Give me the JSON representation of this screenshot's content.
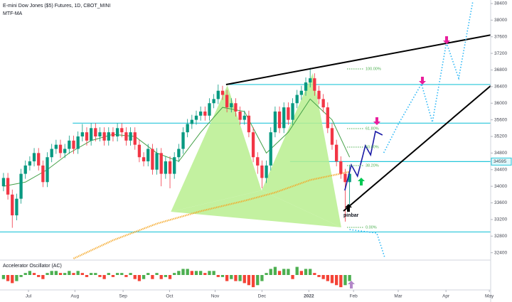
{
  "chart_data": {
    "type": "candlestick",
    "title": "E-mini Dow Jones ($5) Futures, 1D, CBOT_MINI",
    "subtitle": "MTF-MA",
    "xlim": [
      -0.8,
      111.2
    ],
    "ylim": [
      32240,
      38485
    ],
    "yticks": [
      32400,
      32800,
      33200,
      33600,
      34000,
      34400,
      34800,
      35200,
      35600,
      36000,
      36400,
      36800,
      37200,
      37600,
      38000,
      38400
    ],
    "xticks": [
      {
        "value": 5.7,
        "label": "Jul"
      },
      {
        "value": 16.3,
        "label": "Aug"
      },
      {
        "value": 27.3,
        "label": "Sep"
      },
      {
        "value": 37.9,
        "label": "Oct"
      },
      {
        "value": 48.3,
        "label": "Nov"
      },
      {
        "value": 59,
        "label": "Dec"
      },
      {
        "value": 69.7,
        "label": "2022"
      },
      {
        "value": 79.9,
        "label": "Feb"
      },
      {
        "value": 90.1,
        "label": "Mar"
      },
      {
        "value": 101,
        "label": "Apr"
      },
      {
        "value": 110.9,
        "label": "May"
      }
    ],
    "up_color": "#089981",
    "down_color": "#f23645",
    "open": [
      34000,
      34200,
      33800,
      33300,
      33700,
      34300,
      34500,
      34600,
      34800,
      34500,
      34100,
      34700,
      34900,
      35000,
      34800,
      34900,
      35100,
      34900,
      35200,
      35300,
      35100,
      35400,
      35200,
      35300,
      35100,
      35300,
      35200,
      35400,
      35300,
      35100,
      35300,
      35000,
      34700,
      34600,
      34900,
      34400,
      34800,
      34300,
      34600,
      34300,
      34700,
      34900,
      35300,
      35500,
      35600,
      35700,
      35800,
      35700,
      36000,
      36100,
      36300,
      36200,
      35900,
      36000,
      35800,
      35600,
      35700,
      35300,
      34700,
      34500,
      34200,
      34500,
      35300,
      35800,
      35400,
      35900,
      35600,
      36000,
      36200,
      36300,
      36500,
      36600,
      36300,
      36100,
      35900,
      35400,
      35000,
      34600,
      34300,
      34100
    ],
    "high": [
      34320,
      34320,
      33920,
      33820,
      34420,
      34620,
      34720,
      34920,
      34920,
      34620,
      34820,
      35020,
      35120,
      35120,
      35020,
      35220,
      35220,
      35320,
      35500,
      35420,
      35520,
      35520,
      35420,
      35420,
      35420,
      35420,
      35520,
      35520,
      35420,
      35420,
      35420,
      35120,
      34820,
      35020,
      35020,
      34920,
      34920,
      34720,
      34720,
      34820,
      35020,
      35420,
      35620,
      35720,
      35820,
      35920,
      35920,
      36120,
      36220,
      36450,
      36420,
      36320,
      36120,
      36120,
      35920,
      35820,
      35820,
      35420,
      34820,
      34620,
      34620,
      35420,
      35920,
      35920,
      36020,
      36020,
      36120,
      36320,
      36420,
      36620,
      36850,
      36720,
      36420,
      36220,
      36020,
      35520,
      35120,
      34720,
      34420,
      34520
    ],
    "low": [
      33880,
      33680,
      33000,
      33180,
      33580,
      34180,
      34380,
      34480,
      34380,
      33980,
      33980,
      34580,
      34780,
      34680,
      34680,
      34780,
      34780,
      34780,
      35080,
      34980,
      34980,
      35080,
      35080,
      34980,
      34980,
      35080,
      35080,
      35180,
      34980,
      34980,
      34880,
      34580,
      34480,
      34480,
      34280,
      34280,
      34000,
      34180,
      33950,
      34180,
      34580,
      34780,
      35180,
      35380,
      35480,
      35580,
      35580,
      35580,
      35880,
      35980,
      36080,
      35780,
      35780,
      35680,
      35480,
      35480,
      35180,
      34580,
      34300,
      33950,
      34080,
      34380,
      35180,
      35280,
      35280,
      35480,
      35480,
      35880,
      36080,
      36180,
      36380,
      36180,
      35980,
      35780,
      35280,
      34880,
      34480,
      34180,
      33150,
      33400
    ],
    "close": [
      34200,
      33800,
      33300,
      33700,
      34300,
      34500,
      34600,
      34800,
      34500,
      34100,
      34700,
      34900,
      35000,
      34800,
      34900,
      35100,
      34900,
      35200,
      35300,
      35100,
      35400,
      35200,
      35300,
      35100,
      35300,
      35200,
      35400,
      35300,
      35100,
      35300,
      35000,
      34700,
      34600,
      34900,
      34400,
      34800,
      34300,
      34600,
      34300,
      34700,
      34900,
      35300,
      35500,
      35600,
      35700,
      35800,
      35700,
      36000,
      36100,
      36300,
      36200,
      35900,
      36000,
      35800,
      35600,
      35700,
      35300,
      34700,
      34500,
      34200,
      34500,
      35300,
      35800,
      35400,
      35900,
      35600,
      36000,
      36200,
      36300,
      36500,
      36600,
      36300,
      36100,
      35900,
      35400,
      35000,
      34600,
      34300,
      34100,
      34300
    ],
    "last_price": 34595,
    "overlays": [
      {
        "color": "#43a047",
        "x": [
          0,
          5,
          10,
          15,
          20,
          25,
          30,
          35,
          40,
          45,
          50,
          55,
          60,
          65,
          70,
          75,
          79
        ],
        "values": [
          34000,
          34100,
          34400,
          34800,
          35100,
          35250,
          35200,
          34800,
          34600,
          35300,
          35900,
          35800,
          34800,
          35300,
          36100,
          35600,
          34700
        ]
      },
      {
        "color": "#f5a623",
        "dotted": true,
        "x": [
          16,
          25,
          35,
          45,
          55,
          62,
          70,
          79
        ],
        "values": [
          32260,
          32700,
          33100,
          33400,
          33650,
          33850,
          34150,
          34350
        ]
      }
    ],
    "levels": [
      {
        "value": 36450,
        "start": 50.8
      },
      {
        "value": 35520,
        "start": 15.8
      },
      {
        "value": 34595,
        "start": 65.4
      },
      {
        "value": 32900,
        "start": -0.8
      }
    ],
    "level_color": "#26c6da",
    "pattern": {
      "color": "#b9ef8f",
      "x": [
        38.2,
        51.1,
        58.9,
        70.6,
        77.1
      ],
      "values": [
        33386,
        36432,
        33900,
        36723,
        33010
      ]
    },
    "trendlines": [
      {
        "x": [
          50.8,
          112.3
        ],
        "values": [
          36449,
          37664
        ]
      },
      {
        "x": [
          77.6,
          112.3
        ],
        "values": [
          33403,
          36517
        ]
      }
    ],
    "projections": [
      {
        "x": [
          86.8,
          90.1,
          95.4,
          97.9,
          101.1,
          103.9,
          107.1
        ],
        "values": [
          34807,
          35491,
          36466,
          35542,
          37458,
          36603,
          38434
        ]
      },
      {
        "x": [
          79,
          85.2,
          87
        ],
        "values": [
          32958,
          32873,
          32291
        ]
      }
    ],
    "projection_color": "#29b6f6",
    "path": {
      "color": "#1a1aa6",
      "x": [
        77.9,
        79.4,
        80.8,
        82.6,
        83.8,
        84.9,
        86.5
      ],
      "values": [
        33900,
        34515,
        34242,
        34977,
        34755,
        35320,
        35234
      ]
    },
    "fib": [
      {
        "value": 36825,
        "label": "100.00%"
      },
      {
        "value": 35388,
        "label": "61.80%"
      },
      {
        "value": 34943,
        "label": "50.00%"
      },
      {
        "value": 34498,
        "label": "38.20%"
      },
      {
        "value": 33010,
        "label": "0.00%"
      }
    ],
    "fib_color": "#4caf50",
    "pinbar_label": "pinbar",
    "oscillator": {
      "title": "Accelerator Oscillator (AC)",
      "ylim": [
        -7,
        7
      ],
      "up_color": "#4caf50",
      "down_color": "#f44336",
      "values": [
        -2,
        -3,
        -4,
        -3,
        -1,
        1,
        2,
        1,
        -1,
        -2,
        1,
        2,
        2,
        1,
        1,
        2,
        1,
        2,
        1,
        -1,
        1,
        1,
        -1,
        -2,
        1,
        -1,
        1,
        1,
        -1,
        1,
        -2,
        -3,
        -2,
        1,
        -2,
        1,
        -2,
        -1,
        -2,
        1,
        2,
        3,
        3,
        2,
        2,
        2,
        1,
        2,
        2,
        -1,
        -1,
        -3,
        -2,
        -3,
        -3,
        -4,
        -5,
        -6,
        -5,
        -3,
        1,
        3,
        4,
        2,
        3,
        3,
        -2,
        4,
        2,
        3,
        3,
        1,
        -1,
        -2,
        -3,
        -4,
        -5,
        -6,
        -5,
        -3
      ]
    }
  }
}
